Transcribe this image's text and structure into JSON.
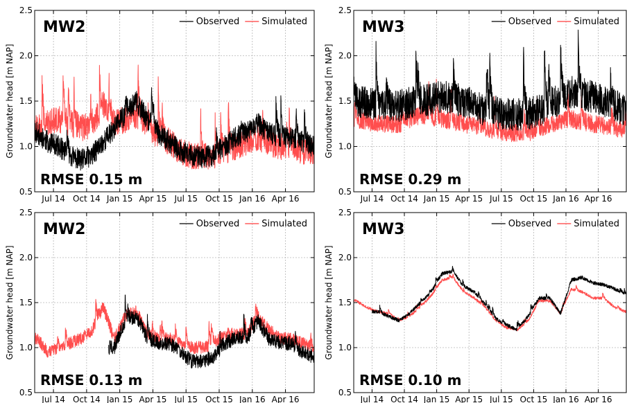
{
  "chart_data": [
    {
      "type": "line",
      "panel_label": "MW2",
      "annotation": "RMSE 0.15 m",
      "ylabel": "Groundwater head [m NAP]",
      "ylim": [
        0.5,
        2.5
      ],
      "y_ticks": [
        "0.5",
        "1.0",
        "1.5",
        "2.0",
        "2.5"
      ],
      "x_tick_labels": [
        "Jul 14",
        "Oct 14",
        "Jan 15",
        "Apr 15",
        "Jul 15",
        "Oct 15",
        "Jan 16",
        "Apr 16"
      ],
      "grid": true,
      "legend_position": "top-right",
      "colors": {
        "Observed": "#000000",
        "Simulated": "#ff3b3b"
      },
      "series": [
        {
          "name": "Observed",
          "x": [
            "2014-05",
            "2014-06",
            "2014-07",
            "2014-08",
            "2014-09",
            "2014-10",
            "2015-01",
            "2015-02",
            "2015-03",
            "2015-04",
            "2015-05",
            "2015-06",
            "2015-07",
            "2015-08",
            "2015-09",
            "2015-10",
            "2015-11",
            "2015-12",
            "2016-01",
            "2016-02",
            "2016-03",
            "2016-04",
            "2016-05",
            "2016-06"
          ],
          "y": [
            1.15,
            1.05,
            1.0,
            0.9,
            0.85,
            0.9,
            1.35,
            1.5,
            1.3,
            1.15,
            1.05,
            0.95,
            0.9,
            0.88,
            0.9,
            1.0,
            1.1,
            1.15,
            1.25,
            1.15,
            1.1,
            1.1,
            1.05,
            1.0
          ],
          "amp": 0.12
        },
        {
          "name": "Simulated",
          "x": [
            "2014-05",
            "2014-06",
            "2014-07",
            "2014-08",
            "2014-09",
            "2014-10",
            "2014-11",
            "2014-12",
            "2015-01",
            "2015-02",
            "2015-03",
            "2015-04",
            "2015-05",
            "2015-06",
            "2015-07",
            "2015-08",
            "2015-09",
            "2015-10",
            "2015-11",
            "2015-12",
            "2016-01",
            "2016-02",
            "2016-03",
            "2016-04",
            "2016-05",
            "2016-06"
          ],
          "y": [
            1.2,
            1.25,
            1.3,
            1.25,
            1.2,
            1.25,
            1.45,
            1.25,
            1.3,
            1.35,
            1.25,
            1.1,
            1.05,
            0.95,
            0.9,
            0.88,
            0.9,
            0.95,
            1.0,
            1.05,
            1.1,
            1.05,
            1.0,
            1.0,
            0.95,
            0.95
          ],
          "amp": 0.15
        }
      ]
    },
    {
      "type": "line",
      "panel_label": "MW3",
      "annotation": "RMSE 0.29 m",
      "ylabel": "Groundwater head [m NAP]",
      "ylim": [
        0.5,
        2.5
      ],
      "y_ticks": [
        "0.5",
        "1.0",
        "1.5",
        "2.0",
        "2.5"
      ],
      "x_tick_labels": [
        "Jul 14",
        "Oct 14",
        "Jan 15",
        "Apr 15",
        "Jul 15",
        "Oct 15",
        "Jan 16",
        "Apr 16"
      ],
      "grid": true,
      "legend_position": "top-right",
      "colors": {
        "Observed": "#000000",
        "Simulated": "#ff3b3b"
      },
      "series": [
        {
          "name": "Observed",
          "x": [
            "2014-05",
            "2014-07",
            "2014-09",
            "2014-11",
            "2015-01",
            "2015-03",
            "2015-05",
            "2015-07",
            "2015-09",
            "2015-11",
            "2016-01",
            "2016-03",
            "2016-05",
            "2016-06"
          ],
          "y": [
            1.5,
            1.45,
            1.45,
            1.5,
            1.55,
            1.5,
            1.4,
            1.35,
            1.35,
            1.45,
            1.6,
            1.55,
            1.45,
            1.4
          ],
          "amp": 0.18
        },
        {
          "name": "Simulated",
          "x": [
            "2014-05",
            "2014-07",
            "2014-09",
            "2014-11",
            "2015-01",
            "2015-03",
            "2015-05",
            "2015-07",
            "2015-09",
            "2015-11",
            "2016-01",
            "2016-03",
            "2016-05",
            "2016-06"
          ],
          "y": [
            1.3,
            1.25,
            1.25,
            1.35,
            1.3,
            1.25,
            1.2,
            1.15,
            1.15,
            1.25,
            1.3,
            1.25,
            1.2,
            1.2
          ],
          "amp": 0.1
        }
      ]
    },
    {
      "type": "line",
      "panel_label": "MW2",
      "annotation": "RMSE 0.13 m",
      "ylabel": "Groundwater head [m NAP]",
      "ylim": [
        0.5,
        2.5
      ],
      "y_ticks": [
        "0.5",
        "1.0",
        "1.5",
        "2.0",
        "2.5"
      ],
      "x_tick_labels": [
        "Jul 14",
        "Oct 14",
        "Jan 15",
        "Apr 15",
        "Jul 15",
        "Oct 15",
        "Jan 16",
        "Apr 16"
      ],
      "grid": true,
      "legend_position": "top-right",
      "colors": {
        "Observed": "#000000",
        "Simulated": "#ff3b3b"
      },
      "series": [
        {
          "name": "Observed",
          "x": [
            "2014-12",
            "2015-01",
            "2015-02",
            "2015-03",
            "2015-04",
            "2015-05",
            "2015-06",
            "2015-07",
            "2015-08",
            "2015-09",
            "2015-10",
            "2015-11",
            "2015-12",
            "2016-01",
            "2016-02",
            "2016-03",
            "2016-04",
            "2016-05",
            "2016-06"
          ],
          "y": [
            1.0,
            1.3,
            1.35,
            1.1,
            1.05,
            1.05,
            0.95,
            0.85,
            0.85,
            0.9,
            1.05,
            1.1,
            1.1,
            1.3,
            1.1,
            1.05,
            1.05,
            0.95,
            0.9
          ],
          "amp": 0.08
        },
        {
          "name": "Simulated",
          "x": [
            "2014-05",
            "2014-06",
            "2014-07",
            "2014-08",
            "2014-09",
            "2014-10",
            "2014-11",
            "2014-12",
            "2015-01",
            "2015-02",
            "2015-03",
            "2015-04",
            "2015-05",
            "2015-06",
            "2015-07",
            "2015-08",
            "2015-09",
            "2015-10",
            "2015-11",
            "2015-12",
            "2016-01",
            "2016-02",
            "2016-03",
            "2016-04",
            "2016-05",
            "2016-06"
          ],
          "y": [
            1.1,
            0.95,
            1.0,
            1.05,
            1.1,
            1.2,
            1.45,
            1.1,
            1.35,
            1.4,
            1.15,
            1.1,
            1.1,
            1.05,
            1.0,
            1.0,
            1.05,
            1.15,
            1.15,
            1.15,
            1.35,
            1.2,
            1.1,
            1.1,
            1.05,
            1.0
          ],
          "amp": 0.07
        }
      ]
    },
    {
      "type": "line",
      "panel_label": "MW3",
      "annotation": "RMSE 0.10 m",
      "ylabel": "Groundwater head [m NAP]",
      "ylim": [
        0.5,
        2.5
      ],
      "y_ticks": [
        "0.5",
        "1.0",
        "1.5",
        "2.0",
        "2.5"
      ],
      "x_tick_labels": [
        "Jul 14",
        "Oct 14",
        "Jan 15",
        "Apr 15",
        "Jul 15",
        "Oct 15",
        "Jan 16",
        "Apr 16"
      ],
      "grid": true,
      "legend_position": "top-right",
      "colors": {
        "Observed": "#000000",
        "Simulated": "#ff3b3b"
      },
      "series": [
        {
          "name": "Observed",
          "x": [
            "2014-07",
            "2014-08",
            "2014-09",
            "2014-10",
            "2014-11",
            "2014-12",
            "2015-01",
            "2015-02",
            "2015-03",
            "2015-04",
            "2015-05",
            "2015-06",
            "2015-07",
            "2015-08",
            "2015-09",
            "2015-10",
            "2015-11",
            "2015-12",
            "2016-01",
            "2016-02",
            "2016-03",
            "2016-04",
            "2016-05",
            "2016-06"
          ],
          "y": [
            1.4,
            1.35,
            1.3,
            1.38,
            1.5,
            1.62,
            1.82,
            1.85,
            1.68,
            1.62,
            1.48,
            1.32,
            1.25,
            1.2,
            1.35,
            1.55,
            1.55,
            1.38,
            1.75,
            1.78,
            1.72,
            1.7,
            1.65,
            1.6
          ],
          "amp": 0.02
        },
        {
          "name": "Simulated",
          "x": [
            "2014-05",
            "2014-06",
            "2014-07",
            "2014-08",
            "2014-09",
            "2014-10",
            "2014-11",
            "2014-12",
            "2015-01",
            "2015-02",
            "2015-03",
            "2015-04",
            "2015-05",
            "2015-06",
            "2015-07",
            "2015-08",
            "2015-09",
            "2015-10",
            "2015-11",
            "2015-12",
            "2016-01",
            "2016-02",
            "2016-03",
            "2016-04",
            "2016-05",
            "2016-06"
          ],
          "y": [
            1.52,
            1.45,
            1.4,
            1.38,
            1.3,
            1.35,
            1.45,
            1.58,
            1.75,
            1.78,
            1.62,
            1.55,
            1.45,
            1.3,
            1.22,
            1.2,
            1.3,
            1.52,
            1.52,
            1.38,
            1.65,
            1.62,
            1.55,
            1.55,
            1.45,
            1.4
          ],
          "amp": 0.015
        }
      ]
    }
  ]
}
